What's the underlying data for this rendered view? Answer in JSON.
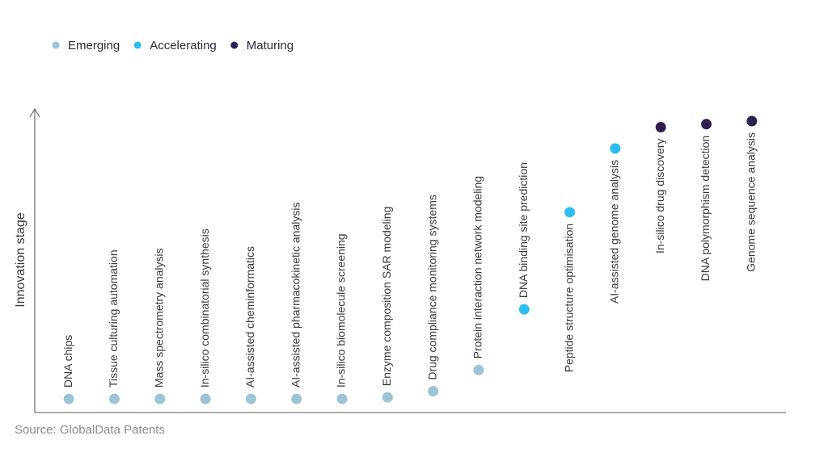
{
  "chart_data": {
    "type": "scatter",
    "y_label": "Innovation stage",
    "source": "Source: GlobalData Patents",
    "categories": [
      "DNA chips",
      "Tissue culturing automation",
      "Mass spectrometry analysis",
      "In-silico combinatorial synthesis",
      "AI-assisted cheminformatics",
      "AI-assisted pharmacokinetic analysis",
      "In-silico biomolecule screening",
      "Enzyme composition SAR modeling",
      "Drug compliance monitoring systems",
      "Protein interaction network modeling",
      "DNA binding site prediction",
      "Peptide structure optimisation",
      "AI-assisted genome analysis",
      "In-silico drug discovery",
      "DNA polymorphism detection",
      "Genome sequence analysis"
    ],
    "series": [
      {
        "name": "Emerging",
        "color": "#9cc3d6",
        "values": [
          4.5,
          4.5,
          4.5,
          4.5,
          4.5,
          4.5,
          4.5,
          5,
          7,
          14,
          null,
          null,
          null,
          null,
          null,
          null
        ]
      },
      {
        "name": "Accelerating",
        "color": "#2cbdf0",
        "values": [
          null,
          null,
          null,
          null,
          null,
          null,
          null,
          null,
          null,
          null,
          34,
          66,
          87,
          null,
          null,
          null
        ]
      },
      {
        "name": "Maturing",
        "color": "#2e1f50",
        "values": [
          null,
          null,
          null,
          null,
          null,
          null,
          null,
          null,
          null,
          null,
          null,
          null,
          null,
          94,
          95,
          96
        ]
      }
    ],
    "ylim": [
      0,
      100
    ]
  }
}
